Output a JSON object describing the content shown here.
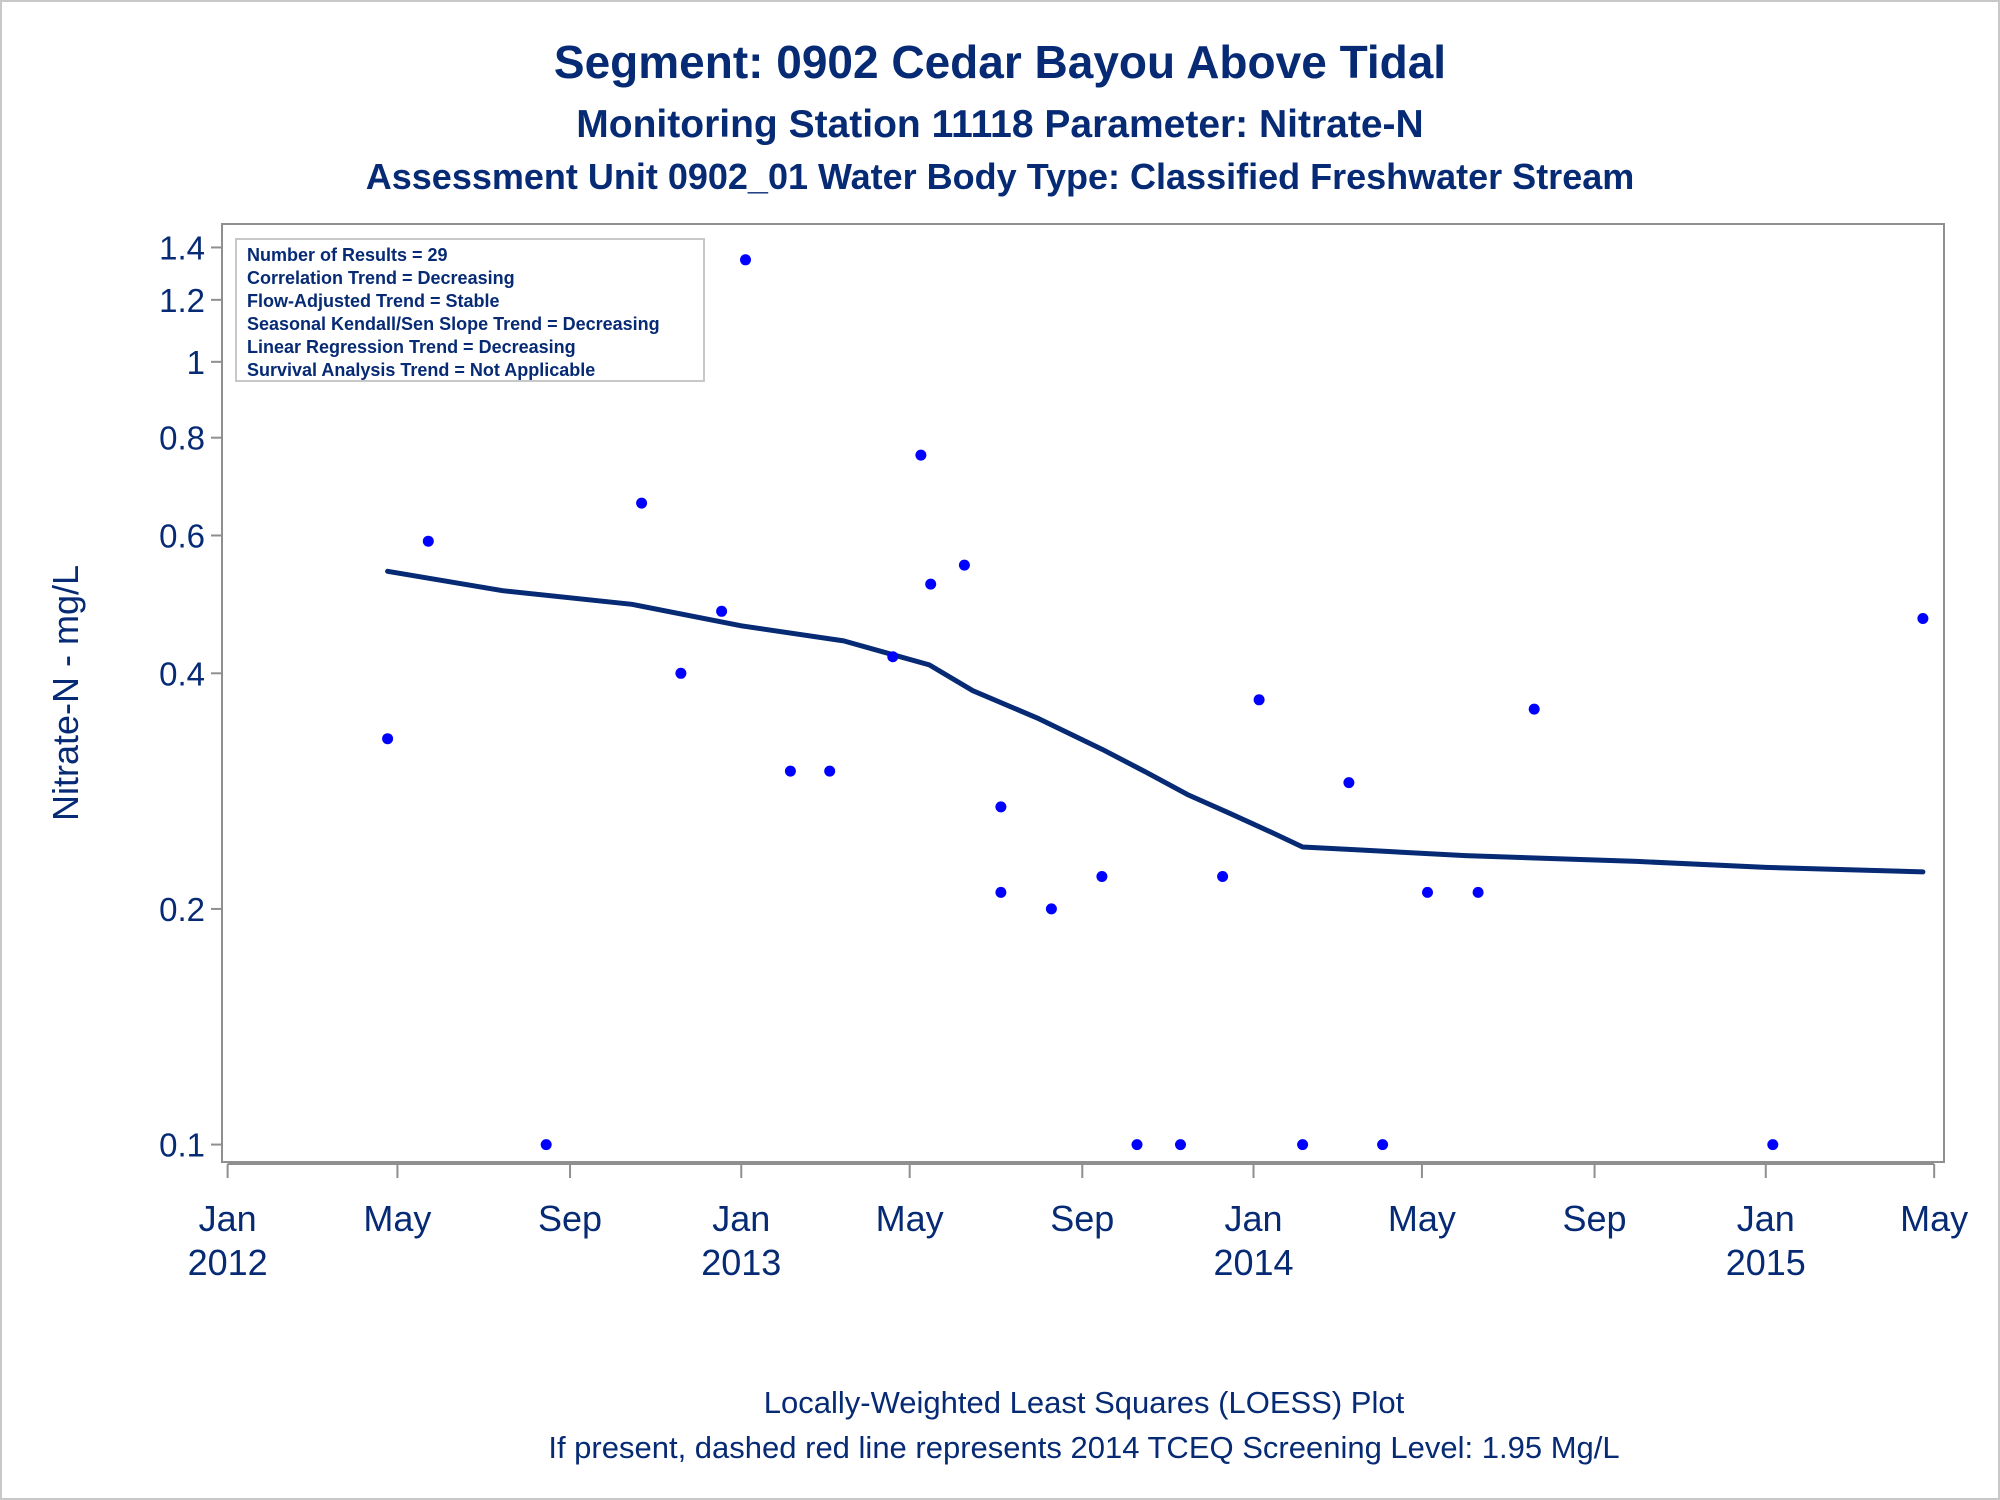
{
  "chart_data": {
    "type": "scatter",
    "title": "Segment: 0902  Cedar Bayou Above Tidal",
    "subtitle1": "Monitoring Station 11118 Parameter: Nitrate-N",
    "subtitle2": "Assessment Unit 0902_01   Water Body Type: Classified Freshwater Stream",
    "ylabel": "Nitrate-N - mg/L",
    "yscale": "log",
    "ylim": [
      0.095,
      1.5
    ],
    "yticks": [
      {
        "value": 0.1,
        "label": "0.1"
      },
      {
        "value": 0.2,
        "label": "0.2"
      },
      {
        "value": 0.4,
        "label": "0.4"
      },
      {
        "value": 0.6,
        "label": "0.6"
      },
      {
        "value": 0.8,
        "label": "0.8"
      },
      {
        "value": 1.0,
        "label": "1"
      },
      {
        "value": 1.2,
        "label": "1.2"
      },
      {
        "value": 1.4,
        "label": "1.4"
      }
    ],
    "xlim": [
      "2011-12-28",
      "2015-05-08"
    ],
    "xticks": [
      {
        "date": "2012-01-01",
        "label": "Jan",
        "year": "2012"
      },
      {
        "date": "2012-05-01",
        "label": "May",
        "year": ""
      },
      {
        "date": "2012-09-01",
        "label": "Sep",
        "year": ""
      },
      {
        "date": "2013-01-01",
        "label": "Jan",
        "year": "2013"
      },
      {
        "date": "2013-05-01",
        "label": "May",
        "year": ""
      },
      {
        "date": "2013-09-01",
        "label": "Sep",
        "year": ""
      },
      {
        "date": "2014-01-01",
        "label": "Jan",
        "year": "2014"
      },
      {
        "date": "2014-05-01",
        "label": "May",
        "year": ""
      },
      {
        "date": "2014-09-01",
        "label": "Sep",
        "year": ""
      },
      {
        "date": "2015-01-01",
        "label": "Jan",
        "year": "2015"
      },
      {
        "date": "2015-05-01",
        "label": "May",
        "year": ""
      }
    ],
    "grid": false,
    "stats_box": [
      "Number of Results = 29",
      "Correlation Trend = Decreasing",
      "Flow-Adjusted Trend = Stable",
      "Seasonal Kendall/Sen Slope Trend = Decreasing",
      "Linear Regression Trend = Decreasing",
      "Survival Analysis Trend = Not Applicable"
    ],
    "stats_box_placement": "top-left",
    "series": [
      {
        "type": "scatter",
        "color": "#0000ff",
        "points": [
          {
            "x": "2012-04-24",
            "y": 0.33
          },
          {
            "x": "2012-05-23",
            "y": 0.59
          },
          {
            "x": "2012-08-15",
            "y": 0.1
          },
          {
            "x": "2012-10-22",
            "y": 0.66
          },
          {
            "x": "2012-11-19",
            "y": 0.4
          },
          {
            "x": "2012-12-18",
            "y": 0.48
          },
          {
            "x": "2013-01-04",
            "y": 1.35
          },
          {
            "x": "2013-02-05",
            "y": 0.3
          },
          {
            "x": "2013-03-05",
            "y": 0.3
          },
          {
            "x": "2013-04-19",
            "y": 0.42
          },
          {
            "x": "2013-05-09",
            "y": 0.76
          },
          {
            "x": "2013-05-16",
            "y": 0.52
          },
          {
            "x": "2013-06-09",
            "y": 0.55
          },
          {
            "x": "2013-07-05",
            "y": 0.27
          },
          {
            "x": "2013-07-05",
            "y": 0.21
          },
          {
            "x": "2013-08-10",
            "y": 0.2
          },
          {
            "x": "2013-09-15",
            "y": 0.22
          },
          {
            "x": "2013-10-10",
            "y": 0.1
          },
          {
            "x": "2013-11-10",
            "y": 0.1
          },
          {
            "x": "2013-12-10",
            "y": 0.22
          },
          {
            "x": "2014-01-05",
            "y": 0.37
          },
          {
            "x": "2014-02-05",
            "y": 0.1
          },
          {
            "x": "2014-03-10",
            "y": 0.29
          },
          {
            "x": "2014-04-03",
            "y": 0.1
          },
          {
            "x": "2014-05-05",
            "y": 0.21
          },
          {
            "x": "2014-06-10",
            "y": 0.21
          },
          {
            "x": "2014-07-20",
            "y": 0.36
          },
          {
            "x": "2015-01-06",
            "y": 0.1
          },
          {
            "x": "2015-04-23",
            "y": 0.47
          }
        ]
      },
      {
        "type": "line",
        "color": "#062a74",
        "points": [
          {
            "x": "2012-04-24",
            "y": 0.54
          },
          {
            "x": "2012-07-15",
            "y": 0.51
          },
          {
            "x": "2012-10-15",
            "y": 0.49
          },
          {
            "x": "2013-01-01",
            "y": 0.46
          },
          {
            "x": "2013-03-15",
            "y": 0.44
          },
          {
            "x": "2013-05-15",
            "y": 0.41
          },
          {
            "x": "2013-06-15",
            "y": 0.38
          },
          {
            "x": "2013-08-01",
            "y": 0.35
          },
          {
            "x": "2013-09-15",
            "y": 0.32
          },
          {
            "x": "2013-10-15",
            "y": 0.3
          },
          {
            "x": "2013-11-15",
            "y": 0.28
          },
          {
            "x": "2013-12-15",
            "y": 0.265
          },
          {
            "x": "2014-01-15",
            "y": 0.25
          },
          {
            "x": "2014-02-05",
            "y": 0.24
          },
          {
            "x": "2014-03-15",
            "y": 0.238
          },
          {
            "x": "2014-06-01",
            "y": 0.234
          },
          {
            "x": "2014-10-01",
            "y": 0.23
          },
          {
            "x": "2015-01-01",
            "y": 0.226
          },
          {
            "x": "2015-04-23",
            "y": 0.223
          }
        ]
      }
    ],
    "footnote1": "Locally-Weighted Least Squares (LOESS) Plot",
    "footnote2": "If present, dashed red line represents 2014 TCEQ Screening Level: 1.95 Mg/L",
    "colors": {
      "text": "#062a74",
      "axis": "#8f8f8f",
      "points": "#0000ff",
      "line": "#062a74"
    }
  }
}
